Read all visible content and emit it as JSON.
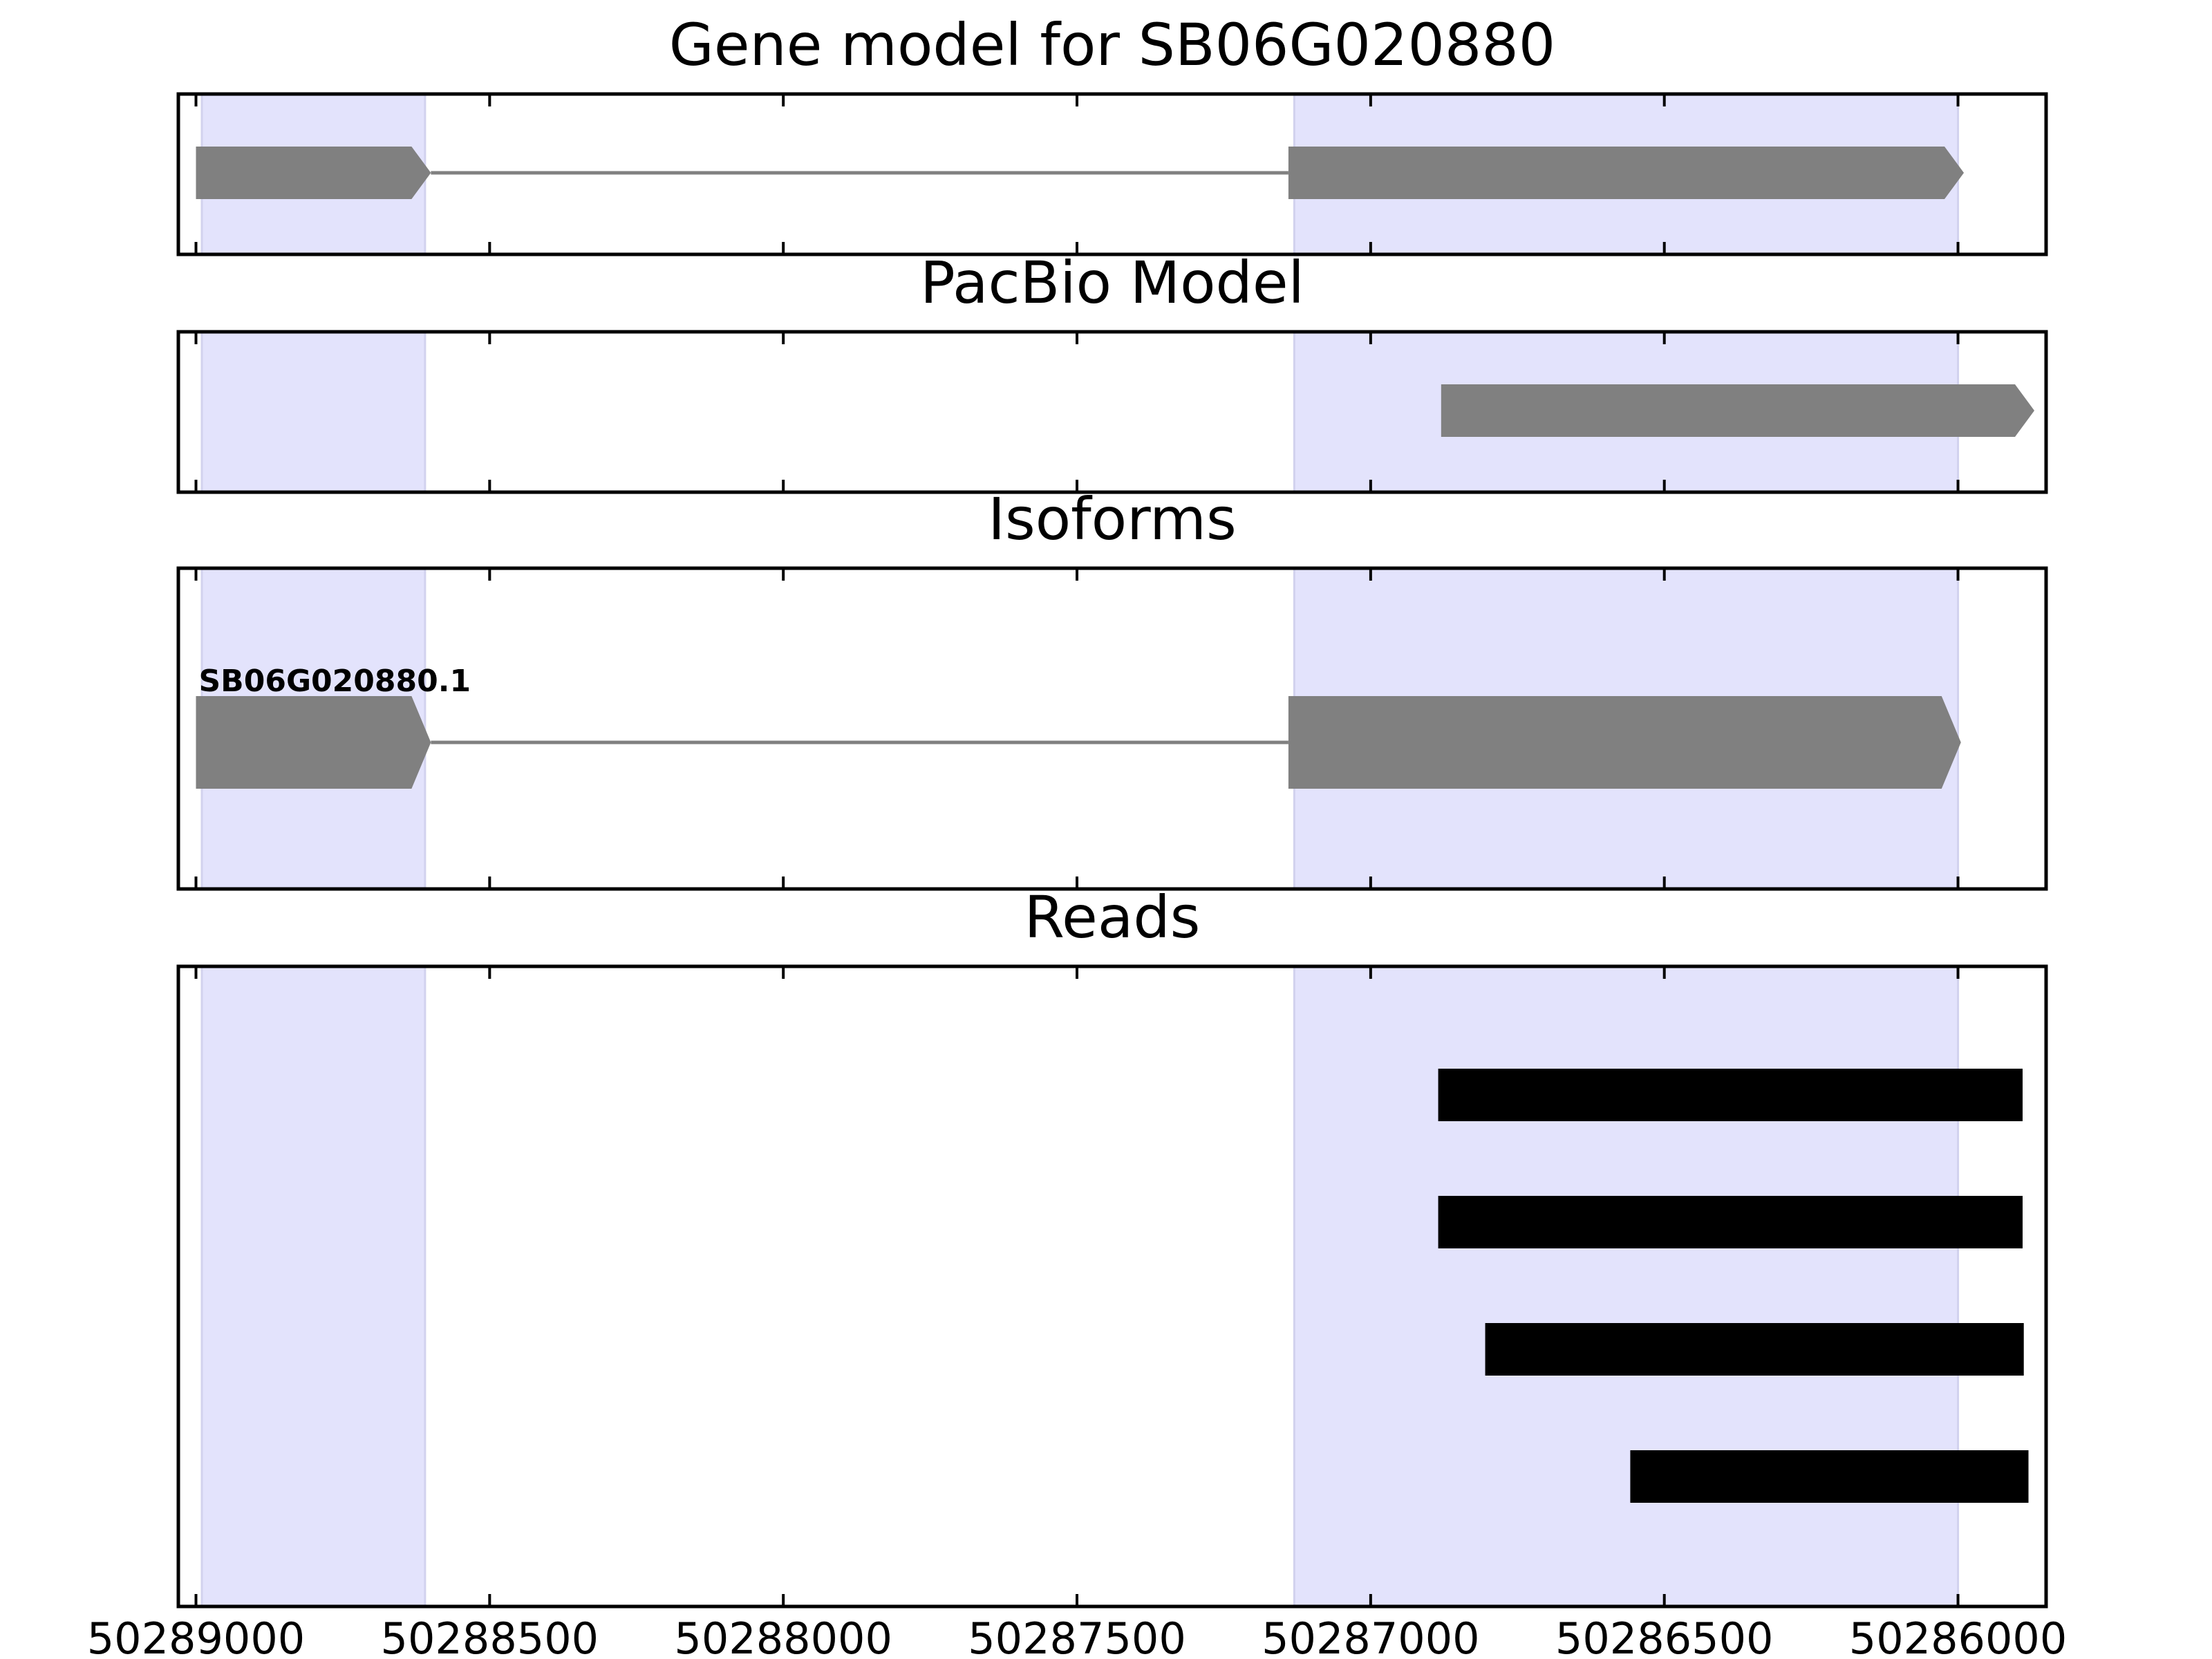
{
  "chart_data": [
    {
      "type": "gene_track",
      "title": "Gene model for SB06G020880",
      "xlim": [
        50289030,
        50285850
      ],
      "highlight_regions": [
        [
          50288990,
          50288610
        ],
        [
          50287130,
          50286000
        ]
      ],
      "features": [
        {
          "kind": "exon",
          "start": 50289000,
          "end": 50288600,
          "strand": "-"
        },
        {
          "kind": "intron",
          "start": 50288600,
          "end": 50287140
        },
        {
          "kind": "exon",
          "start": 50287140,
          "end": 50285990,
          "strand": "-"
        }
      ],
      "color": "#808080"
    },
    {
      "type": "gene_track",
      "title": "PacBio Model",
      "xlim": [
        50289030,
        50285850
      ],
      "highlight_regions": [
        [
          50288990,
          50288610
        ],
        [
          50287130,
          50286000
        ]
      ],
      "features": [
        {
          "kind": "exon",
          "start": 50286880,
          "end": 50285870,
          "strand": "-"
        }
      ],
      "color": "#808080"
    },
    {
      "type": "gene_track",
      "title": "Isoforms",
      "xlim": [
        50289030,
        50285850
      ],
      "highlight_regions": [
        [
          50288990,
          50288610
        ],
        [
          50287130,
          50286000
        ]
      ],
      "isoforms": [
        {
          "label": "SB06G020880.1",
          "features": [
            {
              "kind": "exon",
              "start": 50289000,
              "end": 50288600,
              "strand": "-"
            },
            {
              "kind": "intron",
              "start": 50288600,
              "end": 50287140
            },
            {
              "kind": "exon",
              "start": 50287140,
              "end": 50285995,
              "strand": "-"
            }
          ]
        }
      ],
      "color": "#808080"
    },
    {
      "type": "read_track",
      "title": "Reads",
      "xlim": [
        50289030,
        50285850
      ],
      "highlight_regions": [
        [
          50288990,
          50288610
        ],
        [
          50287130,
          50286000
        ]
      ],
      "x_tick_labels": [
        "50289000",
        "50288500",
        "50288000",
        "50287500",
        "50287000",
        "50286500",
        "50286000"
      ],
      "reads": [
        {
          "start": 50286885,
          "end": 50285890
        },
        {
          "start": 50286885,
          "end": 50285890
        },
        {
          "start": 50286805,
          "end": 50285888
        },
        {
          "start": 50286558,
          "end": 50285880
        }
      ],
      "color": "#000000"
    }
  ],
  "colors": {
    "highlight": "#e3e3fc",
    "highlight_edge": "#d2d2ee",
    "feature": "#808080",
    "read": "#000000",
    "axis": "#000000"
  }
}
